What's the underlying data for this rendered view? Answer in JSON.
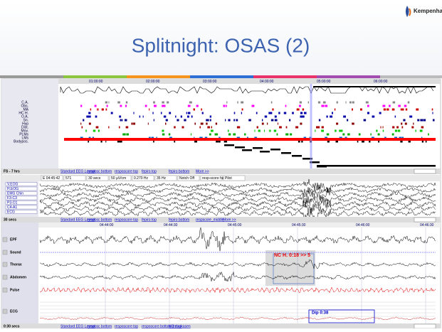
{
  "slide": {
    "title": "Splitnight: OSAS (2)",
    "logo": "Kempenhaeghe"
  },
  "overview": {
    "times": [
      "01:00:00",
      "02:00:00",
      "03:00:00",
      "04:00:00",
      "05:00:00",
      "06:00:00"
    ],
    "labels": [
      "C.A.",
      "Obs.",
      "MA",
      "HC H.",
      "O.A.",
      "Sn.",
      "Hyp",
      "Dist.",
      "Mov.",
      "PLMs",
      "LMs",
      "Bodypos."
    ]
  },
  "toolbar1": {
    "duration": "FS - 7 hrs",
    "tabs": [
      "Standard EEG Layout",
      "resposc bottom",
      "resposcore top",
      "fepiro top",
      "fepiro bottom",
      "More >>"
    ]
  },
  "toolbar2": [
    "E 04:45:42",
    "571",
    "30 secs",
    "50 µV/cm",
    "0.270 Hz",
    "35 Hz",
    "Notch Off",
    "resp-score half",
    "Pilot"
  ],
  "eeg": {
    "labels": [
      "V.EOG",
      "H.EOG",
      "EMG Chin",
      "F3-C3",
      "P3-O1",
      "C4-A1",
      "ECG"
    ]
  },
  "toolbar3": {
    "duration": "30 secs",
    "tabs": [
      "Standard EEG Layout",
      "resposc bottom",
      "resposcore top",
      "fepiro top",
      "fepiro bottom",
      "respscore_middle",
      "More >>"
    ]
  },
  "resp": {
    "times": [
      "04:44:00",
      "04:44:30",
      "04:45:00",
      "04:45:30",
      "04:46:00",
      "04:46:30"
    ],
    "labels": [
      "EPF",
      "Sound",
      "Thorax",
      "Abdomen",
      "Pulse",
      "ECG"
    ],
    "annotations": [
      "NC H. 0:18 >> 5",
      "Dip 0:38"
    ]
  },
  "statusbar": {
    "duration": "0:30 secs",
    "tabs": [
      "Standard EEG Layout",
      "resposc bottom",
      "resposcore top",
      "resposcore bottom 2 dagkasen",
      "More >>"
    ]
  }
}
